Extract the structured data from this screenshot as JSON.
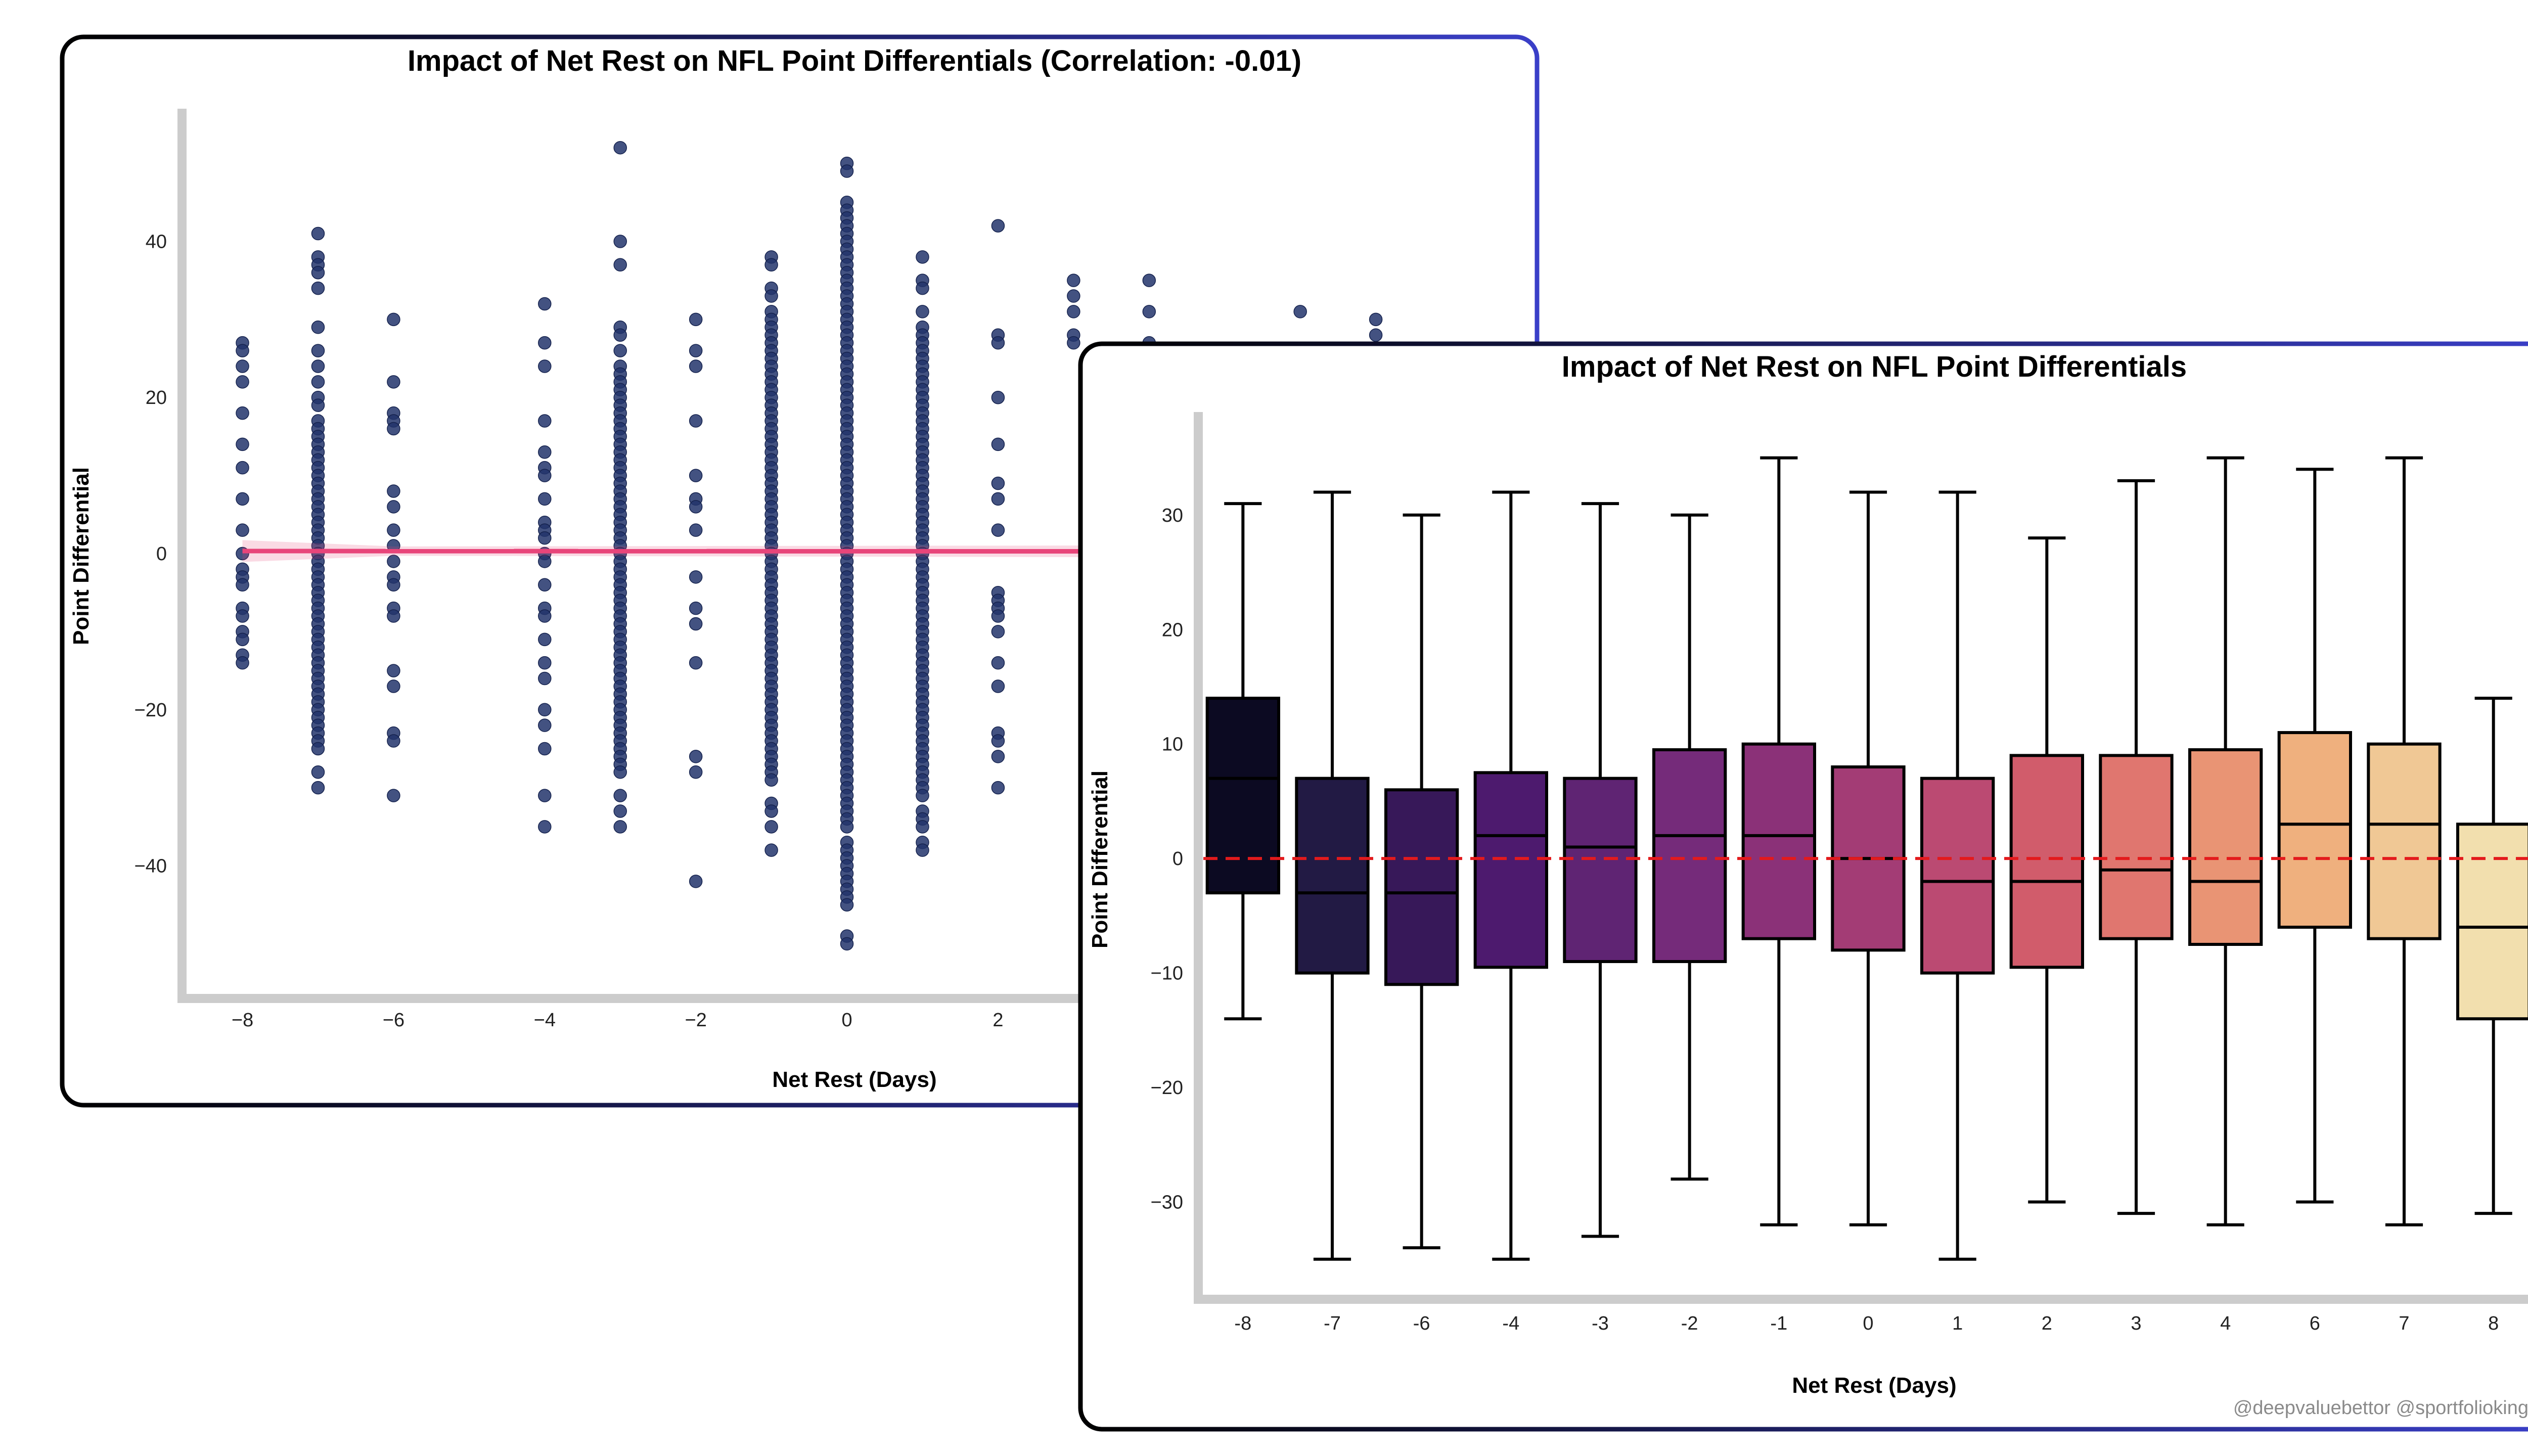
{
  "chart_data": [
    {
      "type": "scatter",
      "title": "Impact of Net Rest on NFL Point Differentials (Correlation: -0.01)",
      "xlabel": "Net Rest (Days)",
      "ylabel": "Point Differential",
      "xlim": [
        -8.8,
        9
      ],
      "ylim": [
        -57,
        57
      ],
      "x_ticks": [
        "−8",
        "−6",
        "−4",
        "−2",
        "0",
        "2"
      ],
      "y_ticks": [
        "−40",
        "−20",
        "0",
        "20",
        "40"
      ],
      "regression": {
        "slope": -0.003,
        "intercept": 0.3,
        "color": "#e8457a"
      },
      "point_color": "#22346b",
      "points": [
        {
          "x": -8,
          "y": [
            27,
            26,
            24,
            22,
            18,
            14,
            11,
            7,
            3,
            0,
            -2,
            -3,
            -4,
            -7,
            -8,
            -10,
            -11,
            -13,
            -14
          ]
        },
        {
          "x": -7,
          "y": [
            41,
            38,
            37,
            36,
            34,
            29,
            26,
            24,
            22,
            20,
            19,
            17,
            16,
            15,
            14,
            13,
            12,
            11,
            10,
            9,
            8,
            7,
            6,
            5,
            4,
            3,
            2,
            1,
            0,
            -1,
            -2,
            -3,
            -4,
            -5,
            -6,
            -7,
            -8,
            -9,
            -10,
            -11,
            -12,
            -13,
            -14,
            -15,
            -16,
            -17,
            -18,
            -19,
            -20,
            -21,
            -22,
            -23,
            -24,
            -25,
            -28,
            -30
          ]
        },
        {
          "x": -6,
          "y": [
            30,
            22,
            18,
            17,
            16,
            8,
            6,
            3,
            1,
            -1,
            -3,
            -4,
            -7,
            -8,
            -15,
            -17,
            -23,
            -24,
            -31
          ]
        },
        {
          "x": -4,
          "y": [
            32,
            27,
            24,
            17,
            13,
            11,
            10,
            7,
            4,
            3,
            2,
            0,
            -1,
            -4,
            -7,
            -8,
            -11,
            -14,
            -16,
            -20,
            -22,
            -25,
            -31,
            -35
          ]
        },
        {
          "x": -3,
          "y": [
            52,
            40,
            37,
            29,
            28,
            26,
            24,
            23,
            22,
            21,
            20,
            19,
            18,
            17,
            16,
            15,
            14,
            13,
            12,
            11,
            10,
            9,
            8,
            7,
            6,
            5,
            4,
            3,
            2,
            1,
            0,
            -1,
            -2,
            -3,
            -4,
            -5,
            -6,
            -7,
            -8,
            -9,
            -10,
            -11,
            -12,
            -13,
            -14,
            -15,
            -16,
            -17,
            -18,
            -19,
            -20,
            -21,
            -22,
            -23,
            -24,
            -25,
            -26,
            -27,
            -28,
            -31,
            -33,
            -35
          ]
        },
        {
          "x": -2,
          "y": [
            30,
            26,
            24,
            17,
            10,
            7,
            6,
            3,
            -3,
            -7,
            -9,
            -14,
            -26,
            -28,
            -42
          ]
        },
        {
          "x": -1,
          "y": [
            38,
            37,
            34,
            33,
            31,
            30,
            29,
            28,
            27,
            26,
            25,
            24,
            23,
            22,
            21,
            20,
            19,
            18,
            17,
            16,
            15,
            14,
            13,
            12,
            11,
            10,
            9,
            8,
            7,
            6,
            5,
            4,
            3,
            2,
            1,
            0,
            -1,
            -2,
            -3,
            -4,
            -5,
            -6,
            -7,
            -8,
            -9,
            -10,
            -11,
            -12,
            -13,
            -14,
            -15,
            -16,
            -17,
            -18,
            -19,
            -20,
            -21,
            -22,
            -23,
            -24,
            -25,
            -26,
            -27,
            -28,
            -29,
            -32,
            -33,
            -35,
            -38
          ]
        },
        {
          "x": 0,
          "y": [
            50,
            49,
            45,
            44,
            43,
            42,
            41,
            40,
            39,
            38,
            37,
            36,
            35,
            34,
            33,
            32,
            31,
            30,
            29,
            28,
            27,
            26,
            25,
            24,
            23,
            22,
            21,
            20,
            19,
            18,
            17,
            16,
            15,
            14,
            13,
            12,
            11,
            10,
            9,
            8,
            7,
            6,
            5,
            4,
            3,
            2,
            1,
            0,
            -1,
            -2,
            -3,
            -4,
            -5,
            -6,
            -7,
            -8,
            -9,
            -10,
            -11,
            -12,
            -13,
            -14,
            -15,
            -16,
            -17,
            -18,
            -19,
            -20,
            -21,
            -22,
            -23,
            -24,
            -25,
            -26,
            -27,
            -28,
            -29,
            -30,
            -31,
            -32,
            -33,
            -34,
            -35,
            -37,
            -38,
            -39,
            -40,
            -41,
            -42,
            -43,
            -44,
            -45,
            -49,
            -50
          ]
        },
        {
          "x": 1,
          "y": [
            38,
            35,
            34,
            31,
            29,
            28,
            27,
            26,
            25,
            24,
            23,
            22,
            21,
            20,
            19,
            18,
            17,
            16,
            15,
            14,
            13,
            12,
            11,
            10,
            9,
            8,
            7,
            6,
            5,
            4,
            3,
            2,
            1,
            0,
            -1,
            -2,
            -3,
            -4,
            -5,
            -6,
            -7,
            -8,
            -9,
            -10,
            -11,
            -12,
            -13,
            -14,
            -15,
            -16,
            -17,
            -18,
            -19,
            -20,
            -21,
            -22,
            -23,
            -24,
            -25,
            -26,
            -27,
            -28,
            -29,
            -30,
            -31,
            -33,
            -34,
            -35,
            -37,
            -38
          ]
        },
        {
          "x": 2,
          "y": [
            42,
            28,
            27,
            20,
            14,
            9,
            7,
            3,
            -5,
            -6,
            -7,
            -8,
            -10,
            -14,
            -17,
            -23,
            -24,
            -26,
            -30
          ]
        },
        {
          "x": 3,
          "y": [
            35,
            33,
            31,
            28,
            27
          ]
        },
        {
          "x": 4,
          "y": [
            35,
            31,
            27
          ]
        },
        {
          "x": 6,
          "y": [
            31
          ]
        },
        {
          "x": 7,
          "y": [
            30,
            28
          ]
        }
      ]
    },
    {
      "type": "box",
      "title": "Impact of Net Rest on NFL Point Differentials",
      "xlabel": "Net Rest (Days)",
      "ylabel": "Point Differential",
      "ylim": [
        -38.5,
        39
      ],
      "y_ticks": [
        "30",
        "20",
        "10",
        "0",
        "−10",
        "−20",
        "−30"
      ],
      "zero_line_color": "#e31a1c",
      "categories": [
        "-8",
        "-7",
        "-6",
        "-4",
        "-3",
        "-2",
        "-1",
        "0",
        "1",
        "2",
        "3",
        "4",
        "6",
        "7",
        "8"
      ],
      "boxes": [
        {
          "lo": -14,
          "q1": -3,
          "med": 7,
          "q3": 14,
          "hi": 31
        },
        {
          "lo": -35,
          "q1": -10,
          "med": -3,
          "q3": 7,
          "hi": 32
        },
        {
          "lo": -34,
          "q1": -11,
          "med": -3,
          "q3": 6,
          "hi": 30
        },
        {
          "lo": -35,
          "q1": -9.5,
          "med": 2,
          "q3": 7.5,
          "hi": 32
        },
        {
          "lo": -33,
          "q1": -9,
          "med": 1,
          "q3": 7,
          "hi": 31
        },
        {
          "lo": -28,
          "q1": -9,
          "med": 2,
          "q3": 9.5,
          "hi": 30
        },
        {
          "lo": -32,
          "q1": -7,
          "med": 2,
          "q3": 10,
          "hi": 35
        },
        {
          "lo": -32,
          "q1": -8,
          "med": 0,
          "q3": 8,
          "hi": 32
        },
        {
          "lo": -35,
          "q1": -10,
          "med": -2,
          "q3": 7,
          "hi": 32
        },
        {
          "lo": -30,
          "q1": -9.5,
          "med": -2,
          "q3": 9,
          "hi": 28
        },
        {
          "lo": -31,
          "q1": -7,
          "med": -1,
          "q3": 9,
          "hi": 33
        },
        {
          "lo": -32,
          "q1": -7.5,
          "med": -2,
          "q3": 9.5,
          "hi": 35
        },
        {
          "lo": -30,
          "q1": -6,
          "med": 3,
          "q3": 11,
          "hi": 34
        },
        {
          "lo": -32,
          "q1": -7,
          "med": 3,
          "q3": 10,
          "hi": 35
        },
        {
          "lo": -31,
          "q1": -14,
          "med": -6,
          "q3": 3,
          "hi": 14
        }
      ],
      "colors": [
        "#0c0a22",
        "#221a44",
        "#371859",
        "#4d1a6e",
        "#5f2473",
        "#752b7a",
        "#8b3178",
        "#a33c75",
        "#bb4a72",
        "#d15c6b",
        "#e0766f",
        "#e99474",
        "#efb07e",
        "#f0c895",
        "#f2dfae"
      ],
      "credit": "@deepvaluebettor @sportfoliokings"
    }
  ]
}
